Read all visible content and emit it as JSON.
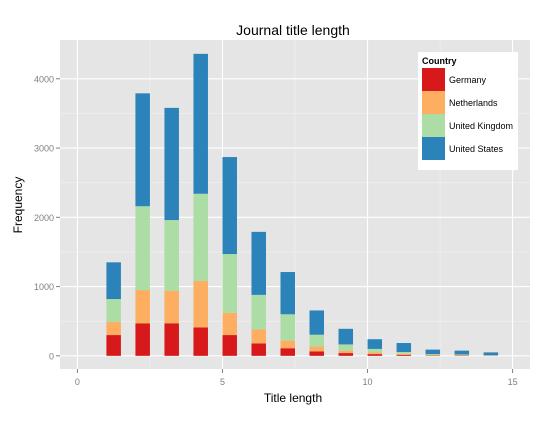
{
  "chart_data": {
    "type": "bar",
    "stacked": true,
    "title": "Journal title length",
    "xlabel": "Title length",
    "ylabel": "Frequency",
    "xlim": [
      -0.6,
      15.6
    ],
    "ylim": [
      -190,
      4560
    ],
    "xticks": [
      0,
      5,
      10,
      15
    ],
    "yticks": [
      0,
      1000,
      2000,
      3000,
      4000
    ],
    "grid": true,
    "legend_position": "top-right",
    "legend_title": "Country",
    "x": [
      1.25,
      2.25,
      3.25,
      4.25,
      5.25,
      6.25,
      7.25,
      8.25,
      9.25,
      10.25,
      11.25,
      12.25,
      13.25,
      14.25
    ],
    "bar_width": 0.5,
    "series": [
      {
        "name": "Germany",
        "color": "#d7191c",
        "values": [
          300,
          470,
          470,
          410,
          300,
          180,
          110,
          65,
          40,
          25,
          15,
          5,
          5,
          3
        ]
      },
      {
        "name": "Netherlands",
        "color": "#fdae61",
        "values": [
          190,
          480,
          470,
          670,
          320,
          200,
          110,
          70,
          35,
          25,
          15,
          5,
          5,
          3
        ]
      },
      {
        "name": "United Kingdom",
        "color": "#abdda4",
        "values": [
          330,
          1210,
          1020,
          1260,
          850,
          500,
          380,
          170,
          90,
          50,
          25,
          15,
          10,
          4
        ]
      },
      {
        "name": "United States",
        "color": "#2b83ba",
        "values": [
          530,
          1630,
          1620,
          2020,
          1400,
          910,
          610,
          350,
          225,
          140,
          130,
          65,
          55,
          40
        ]
      }
    ]
  }
}
